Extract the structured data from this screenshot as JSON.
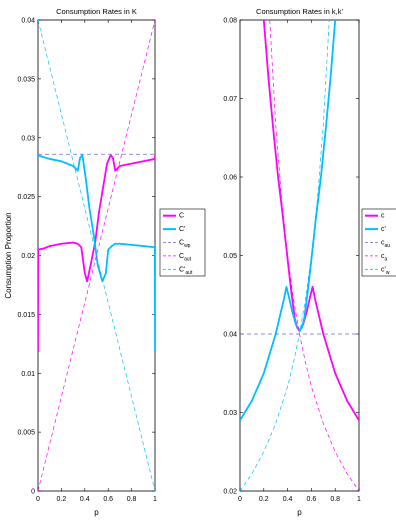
{
  "chart_data": [
    {
      "type": "line",
      "title": "Consumption Rates in K",
      "xlabel": "p",
      "ylabel": "Consumption Proportion",
      "xlim": [
        0,
        1
      ],
      "ylim": [
        0,
        0.04
      ],
      "x_ticks": [
        "0",
        "0.2",
        "0.4",
        "0.6",
        "0.8",
        "1"
      ],
      "y_ticks": [
        "0",
        "0.005",
        "0.01",
        "0.015",
        "0.02",
        "0.025",
        "0.03",
        "0.035",
        "0.04"
      ],
      "grid": false,
      "legend": {
        "placement": "right",
        "entries": [
          {
            "main": "C",
            "sub": "",
            "style": "solid",
            "color": "#ff00ff"
          },
          {
            "main": "C'",
            "sub": "",
            "style": "solid",
            "color": "#00bfff"
          },
          {
            "main": "C",
            "sub": "wp",
            "style": "dashed",
            "color": "#6b6bd1"
          },
          {
            "main": "C",
            "sub": "aut",
            "style": "dashed",
            "color": "#ff00ff"
          },
          {
            "main": "C'",
            "sub": "aut",
            "style": "dashed",
            "color": "#00bfff"
          }
        ]
      },
      "series": [
        {
          "name": "C",
          "style": "solid",
          "color": "#ff00ff",
          "x": [
            0,
            0.001,
            0.05,
            0.1,
            0.2,
            0.3,
            0.34,
            0.37,
            0.4,
            0.42,
            0.45,
            0.49,
            0.52,
            0.56,
            0.59,
            0.62,
            0.64,
            0.66,
            0.7,
            0.8,
            0.9,
            1.0,
            1.0
          ],
          "y": [
            0.0118,
            0.0205,
            0.0206,
            0.0208,
            0.021,
            0.0211,
            0.021,
            0.0207,
            0.0185,
            0.0178,
            0.0192,
            0.0212,
            0.0236,
            0.026,
            0.0278,
            0.0285,
            0.0283,
            0.0272,
            0.0276,
            0.0278,
            0.028,
            0.0282,
            0.0285
          ]
        },
        {
          "name": "C'",
          "style": "solid",
          "color": "#00bfff",
          "x": [
            0,
            0.001,
            0.1,
            0.2,
            0.3,
            0.34,
            0.36,
            0.38,
            0.41,
            0.44,
            0.48,
            0.51,
            0.55,
            0.58,
            0.6,
            0.63,
            0.66,
            0.7,
            0.8,
            0.9,
            0.999,
            1.0
          ],
          "y": [
            0.0285,
            0.0285,
            0.0282,
            0.028,
            0.0276,
            0.0272,
            0.0283,
            0.0285,
            0.0264,
            0.024,
            0.0215,
            0.0192,
            0.0178,
            0.0185,
            0.0205,
            0.0208,
            0.021,
            0.021,
            0.0209,
            0.0208,
            0.0207,
            0.0118
          ]
        },
        {
          "name": "C_wp",
          "style": "dashed",
          "color": "#6b6bd1",
          "x": [
            0,
            1
          ],
          "y": [
            0.0286,
            0.0286
          ]
        },
        {
          "name": "C_aut",
          "style": "dashed",
          "color": "#ff00ff",
          "x": [
            0,
            1
          ],
          "y": [
            0,
            0.04
          ]
        },
        {
          "name": "C'_aut",
          "style": "dashed",
          "color": "#00bfff",
          "x": [
            0,
            1
          ],
          "y": [
            0.04,
            0
          ]
        }
      ]
    },
    {
      "type": "line",
      "title": "Consumption Rates in k,k'",
      "xlabel": "p",
      "ylabel": "",
      "xlim": [
        0,
        1
      ],
      "ylim": [
        0.02,
        0.08
      ],
      "x_ticks": [
        "0",
        "0.2",
        "0.4",
        "0.6",
        "0.8",
        "1"
      ],
      "y_ticks": [
        "0.02",
        "0.03",
        "0.04",
        "0.05",
        "0.06",
        "0.07",
        "0.08"
      ],
      "grid": false,
      "legend": {
        "placement": "right",
        "entries": [
          {
            "main": "c",
            "sub": "",
            "style": "solid",
            "color": "#ff00ff"
          },
          {
            "main": "c'",
            "sub": "",
            "style": "solid",
            "color": "#00bfff"
          },
          {
            "main": "c",
            "sub": "au",
            "style": "dashed",
            "color": "#6b6bd1"
          },
          {
            "main": "c",
            "sub": "a",
            "style": "dashed",
            "color": "#ff00ff"
          },
          {
            "main": "c'",
            "sub": "w",
            "style": "dashed",
            "color": "#00bfff"
          }
        ]
      },
      "series": [
        {
          "name": "c",
          "style": "solid",
          "color": "#ff00ff",
          "x": [
            0.2,
            0.24,
            0.28,
            0.32,
            0.36,
            0.4,
            0.43,
            0.46,
            0.48,
            0.5,
            0.53,
            0.56,
            0.59,
            0.61,
            0.63,
            0.7,
            0.8,
            0.9,
            1.0
          ],
          "y": [
            0.08,
            0.0725,
            0.066,
            0.06,
            0.055,
            0.0495,
            0.0455,
            0.042,
            0.0408,
            0.0404,
            0.0412,
            0.0428,
            0.0448,
            0.046,
            0.0445,
            0.04,
            0.035,
            0.0315,
            0.029
          ]
        },
        {
          "name": "c'",
          "style": "solid",
          "color": "#00bfff",
          "x": [
            0,
            0.1,
            0.2,
            0.3,
            0.37,
            0.39,
            0.41,
            0.44,
            0.47,
            0.5,
            0.52,
            0.54,
            0.57,
            0.6,
            0.64,
            0.68,
            0.72,
            0.76,
            0.8
          ],
          "y": [
            0.029,
            0.0315,
            0.035,
            0.04,
            0.0445,
            0.046,
            0.0448,
            0.0428,
            0.0412,
            0.0404,
            0.0408,
            0.042,
            0.0455,
            0.0495,
            0.055,
            0.06,
            0.066,
            0.0725,
            0.08
          ]
        },
        {
          "name": "c_au",
          "style": "dashed",
          "color": "#6b6bd1",
          "x": [
            0,
            1
          ],
          "y": [
            0.04,
            0.04
          ]
        },
        {
          "name": "c_a",
          "style": "dashed",
          "color": "#ff00ff",
          "x": [
            0.25,
            0.3,
            0.35,
            0.4,
            0.45,
            0.5,
            0.55,
            0.6,
            0.7,
            0.8,
            0.9,
            1.0
          ],
          "y": [
            0.08,
            0.0667,
            0.0571,
            0.05,
            0.0444,
            0.04,
            0.0364,
            0.0333,
            0.0286,
            0.025,
            0.0222,
            0.02
          ]
        },
        {
          "name": "c'_w",
          "style": "dashed",
          "color": "#00bfff",
          "x": [
            0,
            0.1,
            0.2,
            0.3,
            0.4,
            0.45,
            0.5,
            0.55,
            0.6,
            0.65,
            0.7,
            0.75
          ],
          "y": [
            0.02,
            0.0222,
            0.025,
            0.0286,
            0.0333,
            0.0364,
            0.04,
            0.0444,
            0.05,
            0.0571,
            0.0667,
            0.08
          ]
        }
      ]
    }
  ]
}
